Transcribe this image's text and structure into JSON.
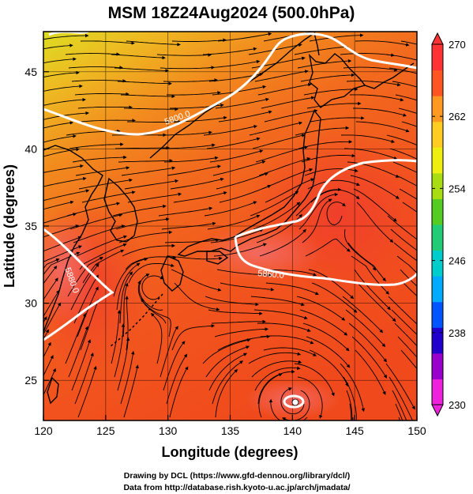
{
  "title": "MSM 18Z24Aug2024 (500.0hPa)",
  "x_axis": {
    "label": "Longitude (degrees)",
    "ticks": [
      "120",
      "125",
      "130",
      "135",
      "140",
      "145",
      "150"
    ],
    "range": [
      120,
      150
    ]
  },
  "y_axis": {
    "label": "Latitude  (degrees)",
    "ticks": [
      "25",
      "30",
      "35",
      "40",
      "45"
    ],
    "range": [
      22.4,
      47.6
    ]
  },
  "colorbar": {
    "labels": [
      "270",
      "262",
      "254",
      "246",
      "238",
      "230"
    ],
    "range": [
      230,
      270
    ],
    "extend": "both",
    "colors": [
      "#ee22dd",
      "#9900cc",
      "#2200cc",
      "#0055ff",
      "#00aaff",
      "#00cccc",
      "#22cc77",
      "#55cc22",
      "#aadd11",
      "#eeee11",
      "#ffcc22",
      "#ff9922",
      "#ff5522",
      "#ff3333"
    ]
  },
  "contours": {
    "labels": [
      "5700.0",
      "5800.0",
      "5880.0",
      "5860.0"
    ],
    "color": "#ffffff"
  },
  "typhoon_marker": {
    "lon": 140.2,
    "lat": 23.8
  },
  "credits": {
    "line1": "Drawing by DCL (https://www.gfd-dennou.org/library/dcl/)",
    "line2": "Data from http://database.rish.kyoto-u.ac.jp/arch/jmadata/"
  }
}
